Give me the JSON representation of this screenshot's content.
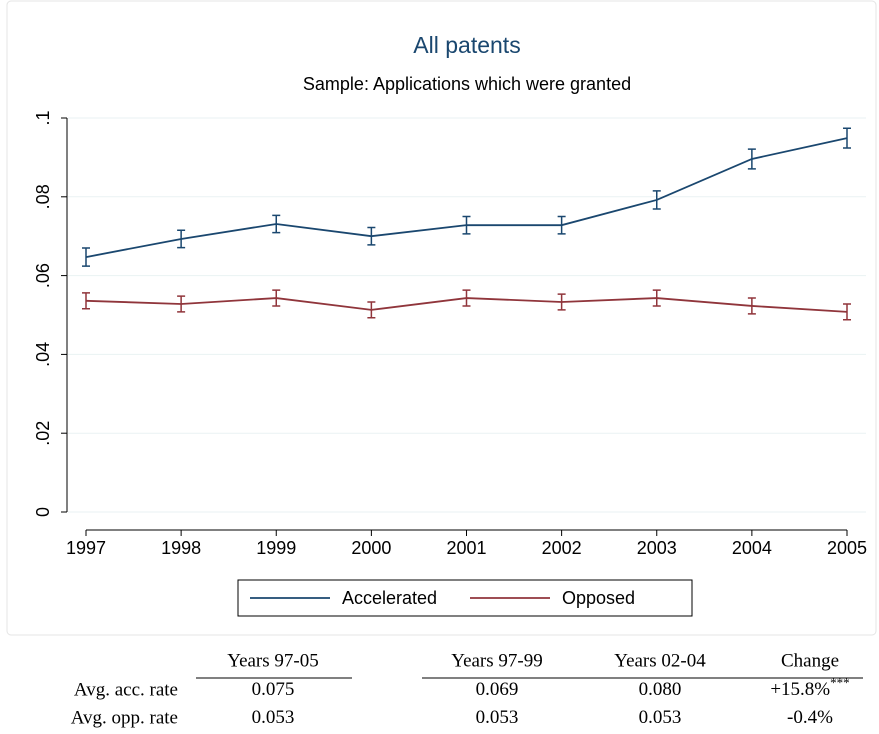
{
  "chart_data": {
    "type": "line",
    "title": "All patents",
    "subtitle": "Sample: Applications which were granted",
    "x": [
      1997,
      1998,
      1999,
      2000,
      2001,
      2002,
      2003,
      2004,
      2005
    ],
    "series": [
      {
        "name": "Accelerated",
        "color": "#1a476f",
        "values": [
          0.0647,
          0.0693,
          0.0731,
          0.07,
          0.0728,
          0.0728,
          0.0792,
          0.0896,
          0.0949
        ],
        "errors": [
          0.0023,
          0.0022,
          0.0022,
          0.0022,
          0.0022,
          0.0022,
          0.0023,
          0.0025,
          0.0025
        ]
      },
      {
        "name": "Opposed",
        "color": "#90353b",
        "values": [
          0.0536,
          0.0528,
          0.0543,
          0.0513,
          0.0543,
          0.0533,
          0.0543,
          0.0523,
          0.0508
        ],
        "errors": [
          0.002,
          0.002,
          0.002,
          0.002,
          0.002,
          0.002,
          0.002,
          0.002,
          0.002
        ]
      }
    ],
    "xlim": [
      1997,
      2005
    ],
    "xticks": [
      1997,
      1998,
      1999,
      2000,
      2001,
      2002,
      2003,
      2004,
      2005
    ],
    "ylim": [
      0,
      0.1
    ],
    "yticks": [
      0,
      {
        "value": 0.02,
        "label": ".02"
      },
      {
        "value": 0.04,
        "label": ".04"
      },
      {
        "value": 0.06,
        "label": ".06"
      },
      {
        "value": 0.08,
        "label": ".08"
      },
      {
        "value": 0.1,
        "label": ".1"
      }
    ],
    "grid": true,
    "legend": "bottom"
  },
  "table": {
    "columns": [
      "Years 97-05",
      "Years 97-99",
      "Years 02-04",
      "Change"
    ],
    "rows": [
      {
        "label": "Avg. acc. rate",
        "cells": [
          "0.075",
          "0.069",
          "0.080",
          "+15.8%"
        ],
        "note": "***"
      },
      {
        "label": "Avg. opp. rate",
        "cells": [
          "0.053",
          "0.053",
          "0.053",
          "-0.4%"
        ]
      }
    ]
  }
}
